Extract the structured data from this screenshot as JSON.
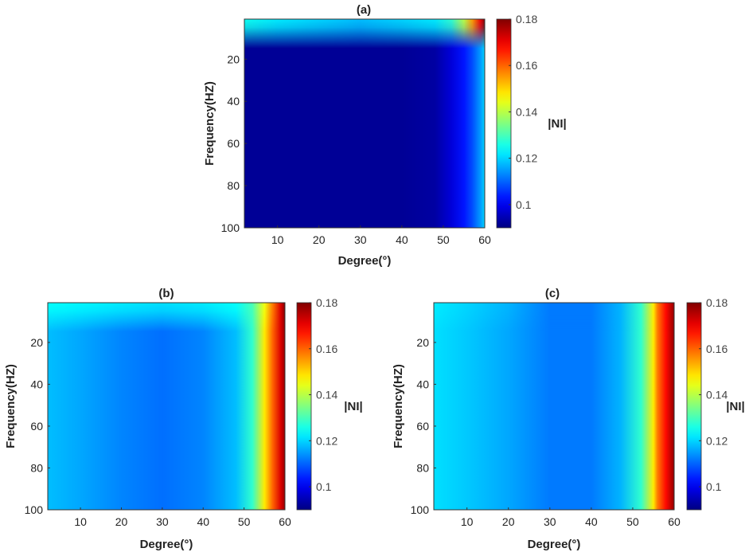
{
  "chart_data": [
    {
      "type": "heatmap",
      "panel": "a",
      "title": "(a)",
      "xlabel": "Degree(°)",
      "ylabel": "Frequency(HZ)",
      "colorbar_label": "|NI|",
      "xticks": [
        10,
        20,
        30,
        40,
        50,
        60
      ],
      "yticks": [
        20,
        40,
        60,
        80,
        100
      ],
      "cbticks": [
        0.1,
        0.12,
        0.14,
        0.16,
        0.18
      ],
      "xlim": [
        2,
        60
      ],
      "ylim": [
        1,
        100
      ],
      "clim": [
        0.09,
        0.18
      ],
      "colormap": "jet",
      "columns": [
        {
          "degree": 2,
          "low_freq": 0.125,
          "high_freq": 0.092
        },
        {
          "degree": 10,
          "low_freq": 0.122,
          "high_freq": 0.092
        },
        {
          "degree": 20,
          "low_freq": 0.12,
          "high_freq": 0.092
        },
        {
          "degree": 30,
          "low_freq": 0.118,
          "high_freq": 0.092
        },
        {
          "degree": 40,
          "low_freq": 0.12,
          "high_freq": 0.092
        },
        {
          "degree": 48,
          "low_freq": 0.122,
          "high_freq": 0.093
        },
        {
          "degree": 52,
          "low_freq": 0.128,
          "high_freq": 0.098
        },
        {
          "degree": 55,
          "low_freq": 0.14,
          "high_freq": 0.103
        },
        {
          "degree": 57,
          "low_freq": 0.155,
          "high_freq": 0.108
        },
        {
          "degree": 59,
          "low_freq": 0.17,
          "high_freq": 0.115
        },
        {
          "degree": 60,
          "low_freq": 0.18,
          "high_freq": 0.12
        }
      ]
    },
    {
      "type": "heatmap",
      "panel": "b",
      "title": "(b)",
      "xlabel": "Degree(°)",
      "ylabel": "Frequency(HZ)",
      "colorbar_label": "|NI|",
      "xticks": [
        10,
        20,
        30,
        40,
        50,
        60
      ],
      "yticks": [
        20,
        40,
        60,
        80,
        100
      ],
      "cbticks": [
        0.1,
        0.12,
        0.14,
        0.16,
        0.18
      ],
      "xlim": [
        2,
        60
      ],
      "ylim": [
        1,
        100
      ],
      "clim": [
        0.09,
        0.18
      ],
      "colormap": "jet",
      "columns": [
        {
          "degree": 2,
          "low_freq": 0.124,
          "high_freq": 0.118
        },
        {
          "degree": 10,
          "low_freq": 0.123,
          "high_freq": 0.116
        },
        {
          "degree": 20,
          "low_freq": 0.122,
          "high_freq": 0.113
        },
        {
          "degree": 30,
          "low_freq": 0.121,
          "high_freq": 0.111
        },
        {
          "degree": 40,
          "low_freq": 0.122,
          "high_freq": 0.113
        },
        {
          "degree": 48,
          "low_freq": 0.124,
          "high_freq": 0.118
        },
        {
          "degree": 52,
          "low_freq": 0.13,
          "high_freq": 0.128
        },
        {
          "degree": 55,
          "low_freq": 0.145,
          "high_freq": 0.148
        },
        {
          "degree": 57,
          "low_freq": 0.158,
          "high_freq": 0.16
        },
        {
          "degree": 59,
          "low_freq": 0.172,
          "high_freq": 0.172
        },
        {
          "degree": 60,
          "low_freq": 0.18,
          "high_freq": 0.178
        }
      ]
    },
    {
      "type": "heatmap",
      "panel": "c",
      "title": "(c)",
      "xlabel": "Degree(°)",
      "ylabel": "Frequency(HZ)",
      "colorbar_label": "|NI|",
      "xticks": [
        10,
        20,
        30,
        40,
        50,
        60
      ],
      "yticks": [
        20,
        40,
        60,
        80,
        100
      ],
      "cbticks": [
        0.1,
        0.12,
        0.14,
        0.16,
        0.18
      ],
      "xlim": [
        2,
        60
      ],
      "ylim": [
        1,
        100
      ],
      "clim": [
        0.09,
        0.18
      ],
      "colormap": "jet",
      "columns": [
        {
          "degree": 2,
          "low_freq": 0.122,
          "high_freq": 0.121
        },
        {
          "degree": 10,
          "low_freq": 0.12,
          "high_freq": 0.119
        },
        {
          "degree": 20,
          "low_freq": 0.117,
          "high_freq": 0.116
        },
        {
          "degree": 30,
          "low_freq": 0.112,
          "high_freq": 0.112
        },
        {
          "degree": 40,
          "low_freq": 0.112,
          "high_freq": 0.112
        },
        {
          "degree": 47,
          "low_freq": 0.117,
          "high_freq": 0.117
        },
        {
          "degree": 52,
          "low_freq": 0.128,
          "high_freq": 0.128
        },
        {
          "degree": 55,
          "low_freq": 0.148,
          "high_freq": 0.148
        },
        {
          "degree": 56,
          "low_freq": 0.158,
          "high_freq": 0.158
        },
        {
          "degree": 58,
          "low_freq": 0.168,
          "high_freq": 0.168
        },
        {
          "degree": 60,
          "low_freq": 0.178,
          "high_freq": 0.178
        }
      ]
    }
  ]
}
